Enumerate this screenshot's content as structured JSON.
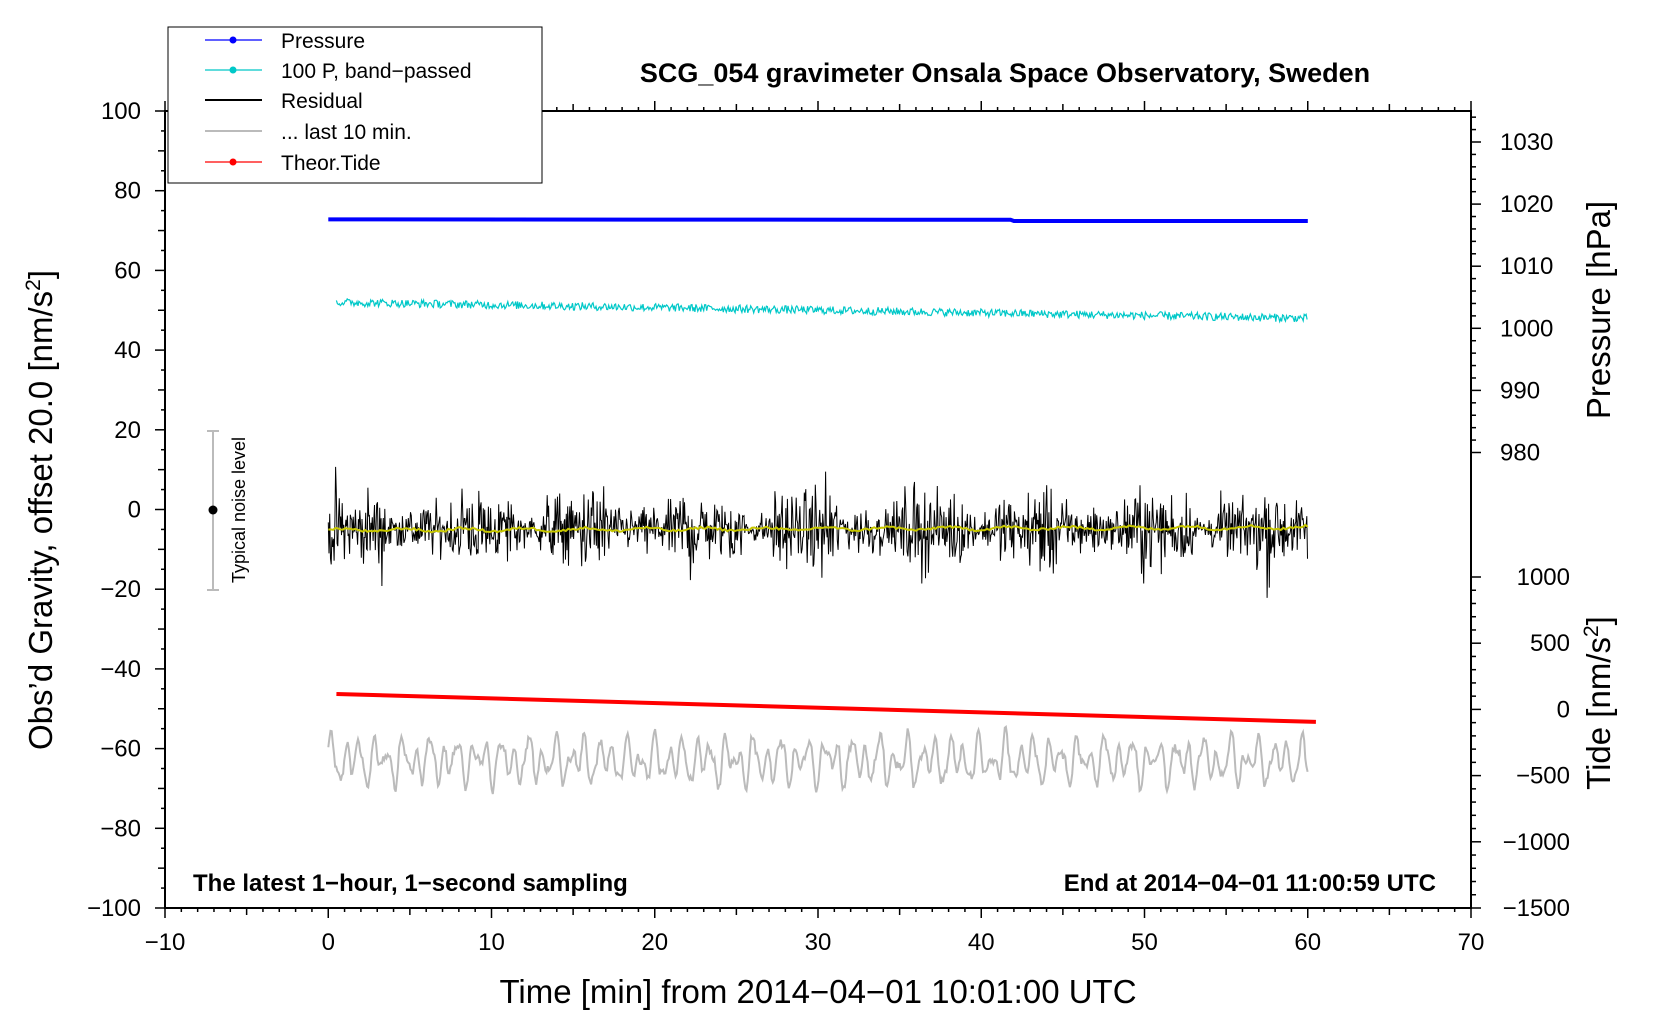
{
  "chart_data": {
    "type": "line",
    "title": "SCG_054 gravimeter Onsala Space Observatory, Sweden",
    "xlabel": "Time [min] from 2014−04−01 10:01:00 UTC",
    "ylabel_left_main": "Obs’d Gravity, offset 20.0 [nm/s",
    "ylabel_left_sup": "2",
    "ylabel_left_end": "]",
    "ylabel_right_pressure": "Pressure [hPa]",
    "ylabel_right_tide_main": "Tide [nm/s",
    "ylabel_right_tide_sup": "2",
    "ylabel_right_tide_end": "]",
    "xlim": [
      -10,
      70
    ],
    "ylim": [
      -100,
      100
    ],
    "pressure_ylim_top": 1030,
    "tide_ylim": [
      -1500,
      1000
    ],
    "x_ticks": [
      {
        "value": -10,
        "label": "−10"
      },
      {
        "value": 0,
        "label": "0"
      },
      {
        "value": 10,
        "label": "10"
      },
      {
        "value": 20,
        "label": "20"
      },
      {
        "value": 30,
        "label": "30"
      },
      {
        "value": 40,
        "label": "40"
      },
      {
        "value": 50,
        "label": "50"
      },
      {
        "value": 60,
        "label": "60"
      },
      {
        "value": 70,
        "label": "70"
      }
    ],
    "y_ticks": [
      {
        "value": 100,
        "label": "100"
      },
      {
        "value": 80,
        "label": "80"
      },
      {
        "value": 60,
        "label": "60"
      },
      {
        "value": 40,
        "label": "40"
      },
      {
        "value": 20,
        "label": "20"
      },
      {
        "value": 0,
        "label": "0"
      },
      {
        "value": -20,
        "label": "−20"
      },
      {
        "value": -40,
        "label": "−40"
      },
      {
        "value": -60,
        "label": "−60"
      },
      {
        "value": -80,
        "label": "−80"
      },
      {
        "value": -100,
        "label": "−100"
      }
    ],
    "pressure_ticks": [
      {
        "value": 1030,
        "label": "1030"
      },
      {
        "value": 1020,
        "label": "1020"
      },
      {
        "value": 1010,
        "label": "1010"
      },
      {
        "value": 1000,
        "label": "1000"
      },
      {
        "value": 990,
        "label": "990"
      },
      {
        "value": 980,
        "label": "980"
      }
    ],
    "tide_ticks": [
      {
        "value": 1000,
        "label": "1000"
      },
      {
        "value": 500,
        "label": "500"
      },
      {
        "value": 0,
        "label": "0"
      },
      {
        "value": -500,
        "label": "−500"
      },
      {
        "value": -1000,
        "label": "−1000"
      },
      {
        "value": -1500,
        "label": "−1500"
      }
    ],
    "legend": [
      {
        "label": "Pressure",
        "color": "#0000ff",
        "marker": true
      },
      {
        "label": "100 P, band−passed",
        "color": "#00c8c8",
        "marker": true
      },
      {
        "label": "Residual",
        "color": "#000000",
        "marker": false
      },
      {
        "label": "... last 10 min.",
        "color": "#bbbbbb",
        "marker": false
      },
      {
        "label": "Theor.Tide",
        "color": "#ff0000",
        "marker": true
      }
    ],
    "series": [
      {
        "name": "Pressure",
        "color": "#0000ff",
        "x_range": [
          0,
          60
        ],
        "y_start": 72.8,
        "y_end": 72.4
      },
      {
        "name": "100 P, band−passed",
        "color": "#00c8c8",
        "x_range": [
          0.5,
          60
        ],
        "y_start": 52.0,
        "y_end": 48.0,
        "noise_amp": 1.0
      },
      {
        "name": "Residual",
        "color": "#000000",
        "x_range": [
          0,
          60
        ],
        "center": -5.0,
        "noise_amp": 7.5
      },
      {
        "name": "Residual (smoothed)",
        "color": "#c8c800",
        "x_range": [
          0,
          60
        ],
        "y_start": -5.2,
        "y_end": -4.5
      },
      {
        "name": "... last 10 min.",
        "color": "#bbbbbb",
        "x_range": [
          0,
          60
        ],
        "center": -63.0,
        "amplitude": 7.0
      },
      {
        "name": "Theor.Tide",
        "color": "#ff0000",
        "x_range": [
          0.5,
          60.5
        ],
        "y_start": -46.3,
        "y_end": -53.3
      }
    ],
    "noise_bar": {
      "x": -7,
      "low": -20,
      "high": 20,
      "label": "Typical noise level"
    },
    "annotations": {
      "bottom_left": "The latest 1−hour, 1−second sampling",
      "bottom_right": "End at 2014−04−01 11:00:59 UTC"
    }
  }
}
